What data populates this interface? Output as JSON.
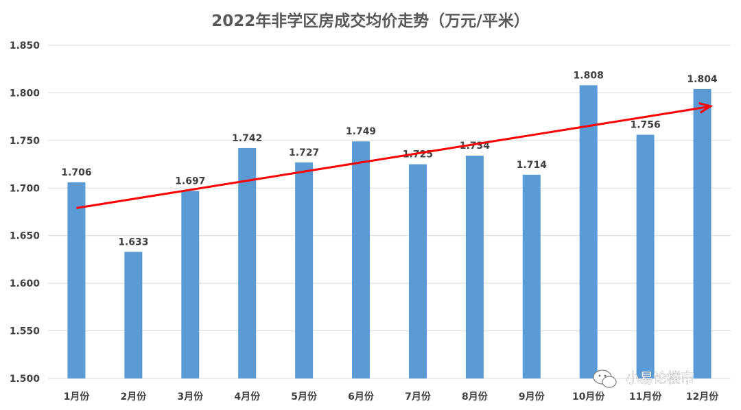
{
  "chart_data": {
    "type": "bar",
    "title": "2022年非学区房成交均价走势（万元/平米）",
    "categories": [
      "1月份",
      "2月份",
      "3月份",
      "4月份",
      "5月份",
      "6月份",
      "7月份",
      "8月份",
      "9月份",
      "10月份",
      "11月份",
      "12月份"
    ],
    "values": [
      1.706,
      1.633,
      1.697,
      1.742,
      1.727,
      1.749,
      1.725,
      1.734,
      1.714,
      1.808,
      1.756,
      1.804
    ],
    "data_labels": [
      "1.706",
      "1.633",
      "1.697",
      "1.742",
      "1.727",
      "1.749",
      "1.725",
      "1.734",
      "1.714",
      "1.808",
      "1.756",
      "1.804"
    ],
    "yticks": [
      "1.500",
      "1.550",
      "1.600",
      "1.650",
      "1.700",
      "1.750",
      "1.800",
      "1.850"
    ],
    "ylim": [
      1.5,
      1.85
    ],
    "grid": true,
    "bar_color": "#5b9bd5",
    "trend_arrow": {
      "color": "#ff0000",
      "start_value": 1.679,
      "end_value": 1.786,
      "start_category": "1月份",
      "end_category": "12月份"
    }
  },
  "watermark": {
    "text": "小易论楼市",
    "icon": "wechat-icon"
  }
}
